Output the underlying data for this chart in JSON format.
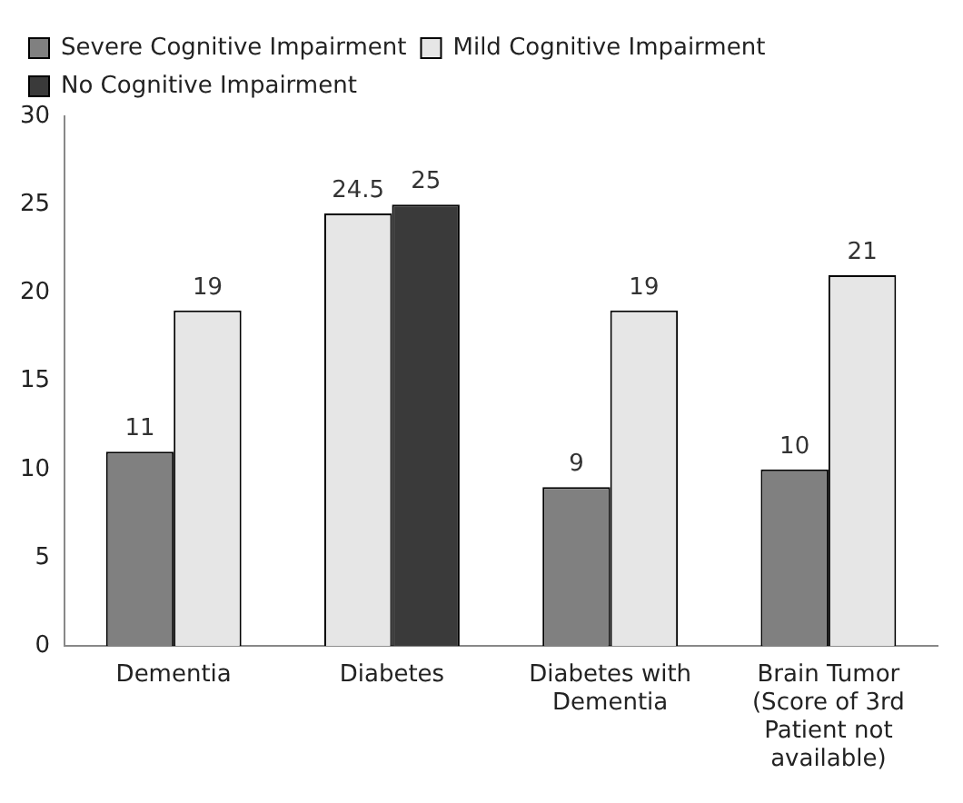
{
  "chart_data": {
    "type": "bar",
    "categories": [
      "Dementia",
      "Diabetes",
      "Diabetes with Dementia",
      "Brain Tumor (Score of 3rd Patient not available)"
    ],
    "series": [
      {
        "name": "Severe Cognitive Impairment",
        "color": "#808080",
        "values": [
          11,
          null,
          9,
          10
        ]
      },
      {
        "name": "Mild Cognitive Impairment",
        "color": "#e6e6e6",
        "values": [
          19,
          24.5,
          19,
          21
        ]
      },
      {
        "name": "No Cognitive Impairment",
        "color": "#3a3a3a",
        "values": [
          null,
          25,
          null,
          null
        ]
      }
    ],
    "ylim": [
      0,
      30
    ],
    "yticks": [
      0,
      5,
      10,
      15,
      20,
      25,
      30
    ],
    "grid": false,
    "legend": "top left",
    "data_labels": true
  }
}
